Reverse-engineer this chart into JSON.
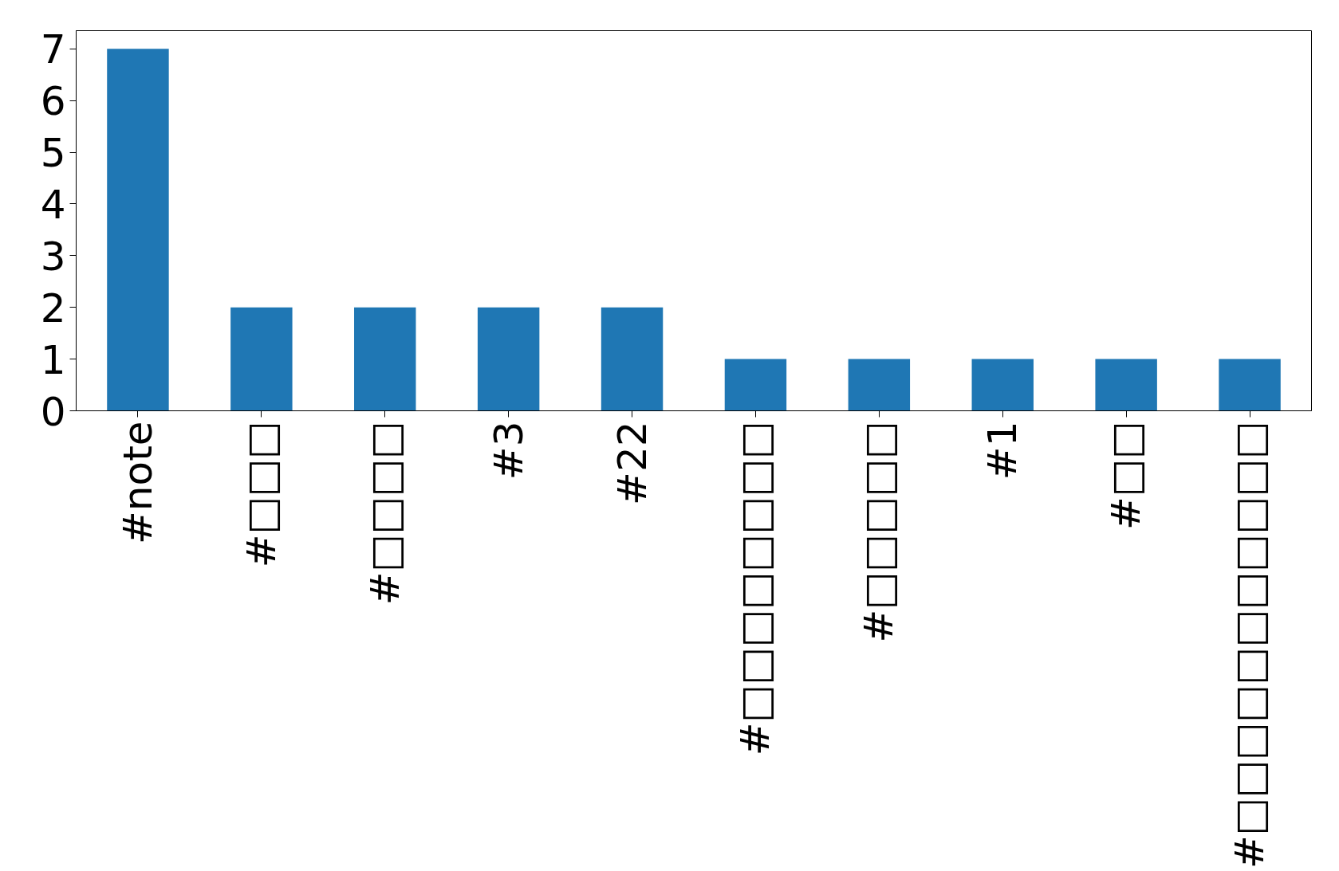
{
  "chart_data": {
    "type": "bar",
    "categories": [
      "#note",
      "#□□□",
      "#□□□□",
      "#3",
      "#22",
      "#□□□□□□□□",
      "#□□□□□",
      "#1",
      "#□□",
      "#□□□□□□□□□□□"
    ],
    "values": [
      7,
      2,
      2,
      2,
      2,
      1,
      1,
      1,
      1,
      1
    ],
    "color": "#1f77b4",
    "ylim": [
      0,
      7.35
    ],
    "yticks": [
      0,
      1,
      2,
      3,
      4,
      5,
      6,
      7
    ],
    "grid": false
  }
}
